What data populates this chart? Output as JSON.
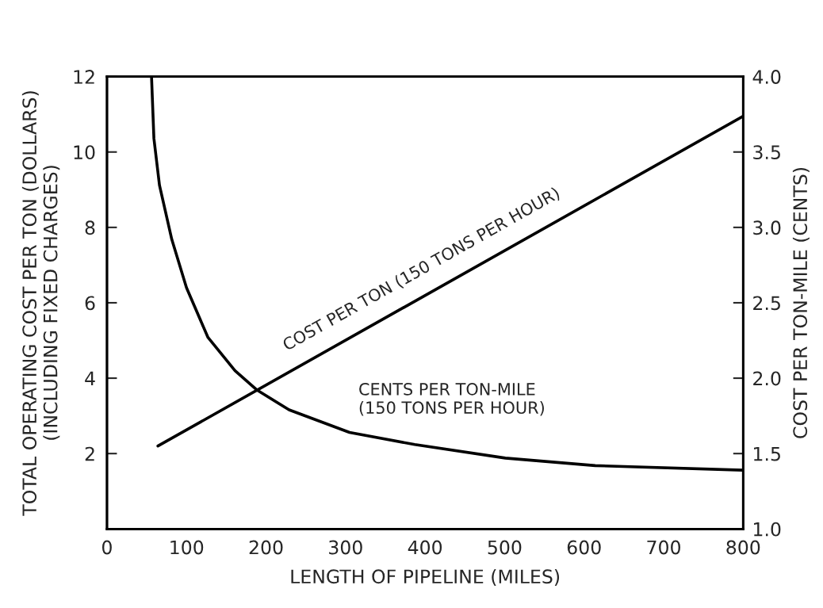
{
  "chart_data": {
    "type": "line",
    "xlabel": "LENGTH OF PIPELINE (MILES)",
    "ylabel": "TOTAL OPERATING COST PER TON (DOLLARS)\n(INCLUDING FIXED CHARGES)",
    "y2label": "COST PER TON-MILE (CENTS)",
    "xlim": [
      0,
      800
    ],
    "xticks": [
      0,
      100,
      200,
      300,
      400,
      500,
      600,
      700,
      800
    ],
    "ylim": [
      0,
      12
    ],
    "yticks": [
      2,
      4,
      6,
      8,
      10,
      12
    ],
    "y2lim": [
      1.0,
      4.0
    ],
    "y2ticks": [
      {
        "value": 1.0,
        "label": "1.0"
      },
      {
        "value": 1.5,
        "label": "1.5"
      },
      {
        "value": 2.0,
        "label": "2.0"
      },
      {
        "value": 2.5,
        "label": "2.5"
      },
      {
        "value": 3.0,
        "label": "3.0"
      },
      {
        "value": 3.5,
        "label": "3.5"
      },
      {
        "value": 4.0,
        "label": "4.0"
      }
    ],
    "grid": false,
    "legend": false,
    "marker": "none",
    "line_style": "solid",
    "series": [
      {
        "name": "COST PER TON (150 TONS PER HOUR)",
        "color": "#000000",
        "x": [
          64,
          800
        ],
        "values": [
          2.2,
          10.95
        ]
      },
      {
        "name": "CENTS PER TON-MILE\n(150 TONS PER HOUR)",
        "color": "#000000",
        "axis": "y2",
        "x": [
          56,
          59,
          66,
          81.5,
          100,
          127,
          161,
          189,
          229,
          305,
          387,
          501,
          614,
          800
        ],
        "values": [
          4.0,
          3.59,
          3.28,
          2.92,
          2.6,
          2.27,
          2.05,
          1.92,
          1.79,
          1.64,
          1.56,
          1.47,
          1.42,
          1.39
        ]
      }
    ]
  }
}
